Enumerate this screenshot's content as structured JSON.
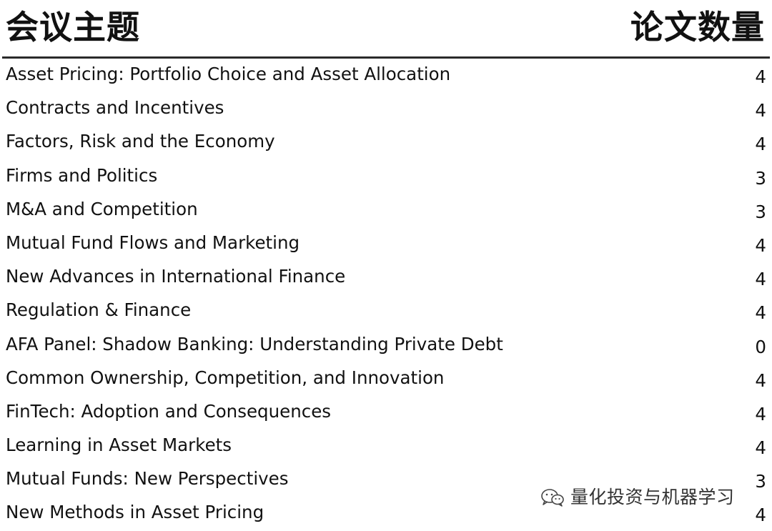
{
  "header": {
    "topic_label": "会议主题",
    "count_label": "论文数量"
  },
  "rows": [
    {
      "topic": "Asset Pricing: Portfolio Choice and Asset Allocation",
      "count": "4"
    },
    {
      "topic": "Contracts and Incentives",
      "count": "4"
    },
    {
      "topic": "Factors, Risk and the Economy",
      "count": "4"
    },
    {
      "topic": "Firms and Politics",
      "count": "3"
    },
    {
      "topic": "M&A and Competition",
      "count": "3"
    },
    {
      "topic": "Mutual Fund Flows and Marketing",
      "count": "4"
    },
    {
      "topic": "New Advances in International Finance",
      "count": "4"
    },
    {
      "topic": "Regulation & Finance",
      "count": "4"
    },
    {
      "topic": "AFA Panel: Shadow Banking: Understanding Private Debt",
      "count": "0"
    },
    {
      "topic": "Common Ownership, Competition, and Innovation",
      "count": "4"
    },
    {
      "topic": "FinTech: Adoption and Consequences",
      "count": "4"
    },
    {
      "topic": "Learning in Asset Markets",
      "count": "4"
    },
    {
      "topic": "Mutual Funds: New Perspectives",
      "count": "3"
    },
    {
      "topic": "New Methods in Asset Pricing",
      "count": "4"
    }
  ],
  "watermark": {
    "icon": "wechat-icon",
    "text": "量化投资与机器学习"
  }
}
